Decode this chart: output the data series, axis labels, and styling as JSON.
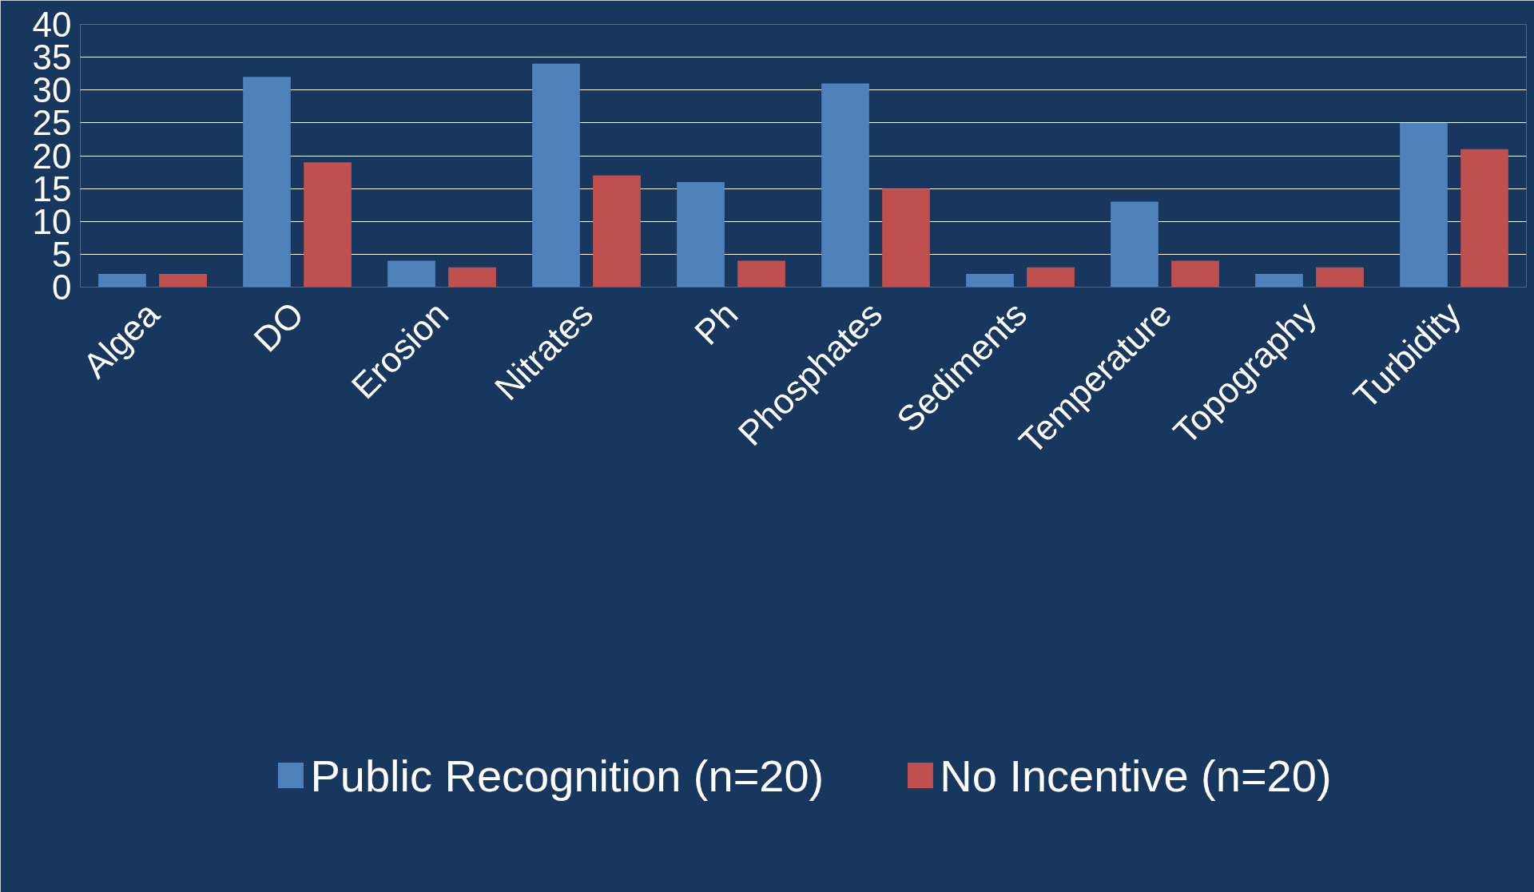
{
  "chart_data": {
    "type": "bar",
    "categories": [
      "Algea",
      "DO",
      "Erosion",
      "Nitrates",
      "Ph",
      "Phosphates",
      "Sediments",
      "Temperature",
      "Topography",
      "Turbidity"
    ],
    "series": [
      {
        "name": "Public Recognition (n=20)",
        "color": "#4f81bd",
        "values": [
          2,
          32,
          4,
          34,
          16,
          31,
          2,
          13,
          2,
          25
        ]
      },
      {
        "name": "No Incentive (n=20)",
        "color": "#c0504d",
        "values": [
          2,
          19,
          3,
          17,
          4,
          15,
          3,
          4,
          3,
          21
        ]
      }
    ],
    "ylim": [
      0,
      40
    ],
    "yticks": [
      0,
      5,
      10,
      15,
      20,
      25,
      30,
      35,
      40
    ],
    "grid": "y",
    "legend": "bottom"
  }
}
